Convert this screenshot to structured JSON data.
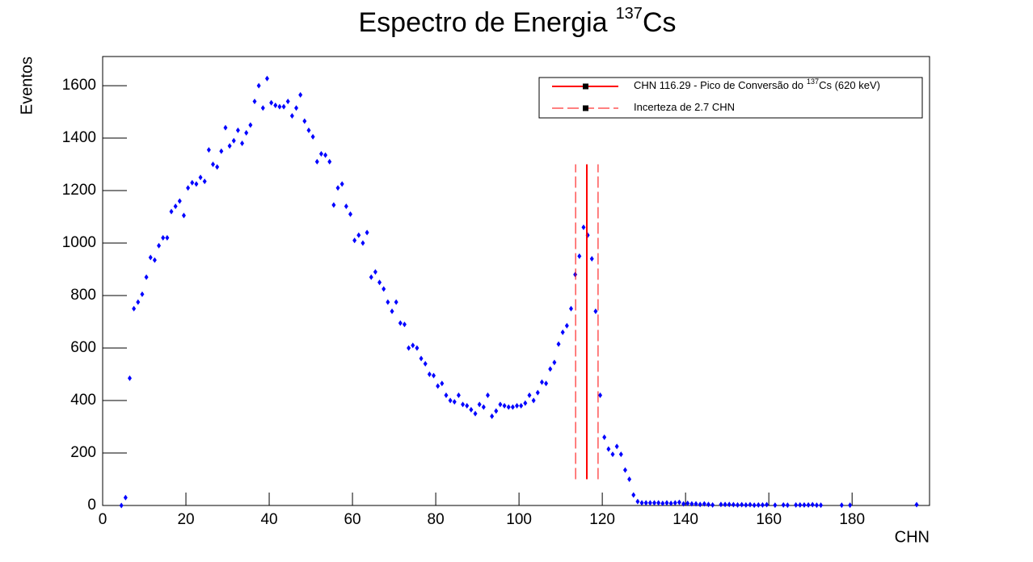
{
  "chart_data": {
    "type": "scatter",
    "title": "Espectro de Energia",
    "title_sup": "137",
    "title_suffix": "Cs",
    "x_label": "CHN",
    "y_label": "Eventos",
    "xlim": [
      0,
      198.6
    ],
    "ylim": [
      0,
      1711
    ],
    "xticks": [
      0,
      20,
      40,
      60,
      80,
      100,
      120,
      140,
      160,
      180
    ],
    "yticks": [
      0,
      200,
      400,
      600,
      800,
      1000,
      1200,
      1400,
      1600
    ],
    "legend_position": "top-right",
    "series": [
      {
        "color": "#0000ff",
        "x": [
          4.5,
          5.5,
          6.5,
          7.5,
          8.5,
          9.5,
          10.5,
          11.5,
          12.5,
          13.5,
          14.5,
          15.5,
          16.5,
          17.5,
          18.5,
          19.5,
          20.5,
          21.5,
          22.5,
          23.5,
          24.5,
          25.5,
          26.5,
          27.5,
          28.5,
          29.5,
          30.5,
          31.5,
          32.5,
          33.5,
          34.5,
          35.5,
          36.5,
          37.5,
          38.5,
          39.5,
          40.5,
          41.5,
          42.5,
          43.5,
          44.5,
          45.5,
          46.5,
          47.5,
          48.5,
          49.5,
          50.5,
          51.5,
          52.5,
          53.5,
          54.5,
          55.5,
          56.5,
          57.5,
          58.5,
          59.5,
          60.5,
          61.5,
          62.5,
          63.5,
          64.5,
          65.5,
          66.5,
          67.5,
          68.5,
          69.5,
          70.5,
          71.5,
          72.5,
          73.5,
          74.5,
          75.5,
          76.5,
          77.5,
          78.5,
          79.5,
          80.5,
          81.5,
          82.5,
          83.5,
          84.5,
          85.5,
          86.5,
          87.5,
          88.5,
          89.5,
          90.5,
          91.5,
          92.5,
          93.5,
          94.5,
          95.5,
          96.5,
          97.5,
          98.5,
          99.5,
          100.5,
          101.5,
          102.5,
          103.5,
          104.5,
          105.5,
          106.5,
          107.5,
          108.5,
          109.5,
          110.5,
          111.5,
          112.5,
          113.5,
          114.5,
          115.5,
          116.5,
          117.5,
          118.4,
          119.5,
          120.5,
          121.5,
          122.5,
          123.5,
          124.5,
          125.5,
          126.5,
          127.5,
          128.5,
          129.5,
          130.5,
          131.5,
          132.5,
          133.5,
          134.5,
          135.5,
          136.5,
          137.5,
          138.5,
          139.5,
          140.5,
          141.5,
          142.5,
          143.5,
          144.5,
          145.5,
          146.5,
          148.5,
          149.5,
          150.5,
          151.5,
          152.5,
          153.5,
          154.5,
          155.5,
          156.5,
          157.5,
          158.5,
          159.5,
          161.5,
          163.5,
          164.5,
          166.5,
          167.5,
          168.5,
          169.5,
          170.5,
          171.5,
          172.5,
          177.5,
          179.5,
          195.5
        ],
        "values": [
          0,
          30,
          485,
          750,
          775,
          805,
          870,
          945,
          935,
          990,
          1020,
          1020,
          1120,
          1140,
          1160,
          1105,
          1210,
          1230,
          1225,
          1250,
          1235,
          1355,
          1300,
          1290,
          1350,
          1440,
          1370,
          1390,
          1430,
          1380,
          1420,
          1450,
          1540,
          1600,
          1515,
          1627,
          1535,
          1525,
          1520,
          1520,
          1540,
          1485,
          1515,
          1565,
          1465,
          1430,
          1405,
          1310,
          1340,
          1335,
          1310,
          1145,
          1210,
          1225,
          1140,
          1110,
          1010,
          1030,
          1000,
          1040,
          870,
          890,
          850,
          825,
          775,
          740,
          775,
          695,
          690,
          600,
          610,
          600,
          560,
          540,
          500,
          495,
          455,
          465,
          420,
          400,
          395,
          420,
          385,
          380,
          365,
          350,
          385,
          375,
          420,
          340,
          360,
          385,
          380,
          375,
          375,
          380,
          380,
          390,
          420,
          400,
          430,
          470,
          465,
          520,
          545,
          615,
          660,
          685,
          750,
          880,
          950,
          1060,
          1030,
          940,
          740,
          420,
          260,
          215,
          195,
          225,
          195,
          135,
          100,
          40,
          15,
          10,
          10,
          10,
          10,
          10,
          8,
          10,
          8,
          10,
          12,
          6,
          8,
          6,
          6,
          4,
          6,
          4,
          2,
          4,
          4,
          4,
          3,
          2,
          3,
          2,
          3,
          1,
          2,
          2,
          3,
          1,
          2,
          1,
          2,
          2,
          2,
          2,
          3,
          1,
          1,
          1,
          1,
          3
        ]
      }
    ],
    "vlines": [
      {
        "x": 116.29,
        "y": [
          100,
          1300
        ],
        "color": "#ff0000",
        "style": "solid"
      },
      {
        "x": 113.59,
        "y": [
          100,
          1300
        ],
        "color": "#ff0000",
        "style": "dashed"
      },
      {
        "x": 118.99,
        "y": [
          100,
          1300
        ],
        "color": "#ff0000",
        "style": "dashed"
      }
    ],
    "legend": [
      {
        "text": "CHN 116.29 - Pico de Conversão do",
        "sup": "137",
        "suffix": "Cs (620 keV)",
        "color": "#ff0000",
        "style": "solid"
      },
      {
        "text": "Incerteza de 2.7 CHN",
        "color": "#ff0000",
        "style": "dashed"
      }
    ]
  }
}
